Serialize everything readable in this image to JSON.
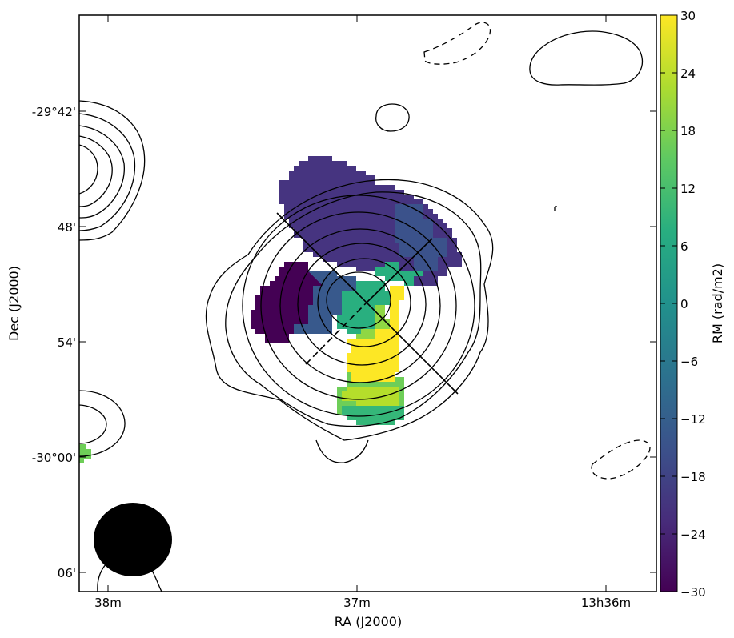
{
  "chart_data": {
    "type": "heatmap",
    "title": "",
    "xlabel": "RA (J2000)",
    "ylabel": "Dec (J2000)",
    "x_tick_labels": [
      "38m",
      "37m",
      "13h36m"
    ],
    "y_tick_labels": [
      "-29°42'",
      "48'",
      "54'",
      "-30°00'",
      "06'"
    ],
    "colorbar": {
      "label": "RM (rad/m2)",
      "colormap": "viridis",
      "range": [
        -30,
        30
      ],
      "tick_labels": [
        "30",
        "24",
        "18",
        "12",
        "6",
        "0",
        "−6",
        "−12",
        "−18",
        "−24",
        "−30"
      ],
      "colors": [
        "#440154",
        "#472d7b",
        "#3b528b",
        "#2c728e",
        "#21918c",
        "#28ae80",
        "#5ec962",
        "#addc30",
        "#fde725"
      ]
    },
    "rm_regions": [
      {
        "region": "north lobe",
        "rm_approx": -20
      },
      {
        "region": "northeast edge",
        "rm_approx": -30
      },
      {
        "region": "west edge",
        "rm_approx": -28
      },
      {
        "region": "core",
        "rm_approx": 4
      },
      {
        "region": "south extension",
        "rm_approx": 28
      },
      {
        "region": "southern knot",
        "rm_approx": 16
      },
      {
        "region": "west border compact source",
        "rm_approx": 14
      }
    ],
    "contours": "total intensity, solid = positive, dashed = negative",
    "grid": false,
    "beam": "filled ellipse, bottom-left"
  }
}
